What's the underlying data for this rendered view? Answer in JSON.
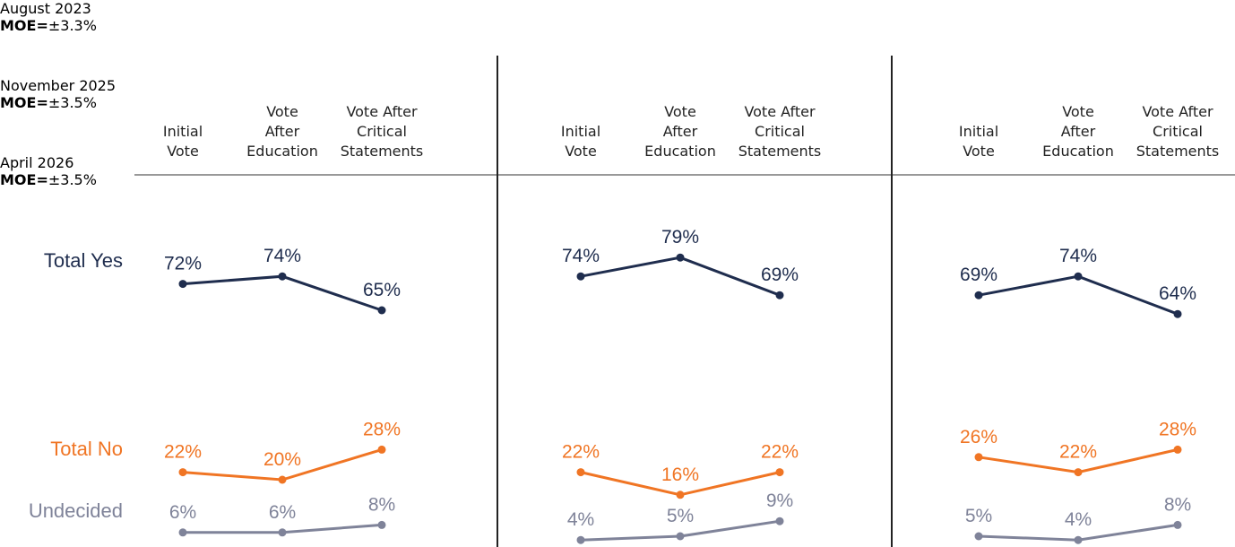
{
  "chart_data": {
    "type": "line",
    "categories": [
      "Initial\nVote",
      "Vote\nAfter\nEducation",
      "Vote After\nCritical\nStatements"
    ],
    "panels": [
      {
        "title": "August 2023",
        "moe_label": "MOE=",
        "moe_value": "±3.3%"
      },
      {
        "title": "November 2025",
        "moe_label": "MOE=",
        "moe_value": "±3.5%"
      },
      {
        "title": "April 2026",
        "moe_label": "MOE=",
        "moe_value": "±3.5%"
      }
    ],
    "series": [
      {
        "name": "Total Yes",
        "color": "#1f2d4e",
        "values": [
          [
            72,
            74,
            65
          ],
          [
            74,
            79,
            69
          ],
          [
            69,
            74,
            64
          ]
        ],
        "value_labels": [
          [
            "72%",
            "74%",
            "65%"
          ],
          [
            "74%",
            "79%",
            "69%"
          ],
          [
            "69%",
            "74%",
            "64%"
          ]
        ]
      },
      {
        "name": "Total No",
        "color": "#f07524",
        "values": [
          [
            22,
            20,
            28
          ],
          [
            22,
            16,
            22
          ],
          [
            26,
            22,
            28
          ]
        ],
        "value_labels": [
          [
            "22%",
            "20%",
            "28%"
          ],
          [
            "22%",
            "16%",
            "22%"
          ],
          [
            "26%",
            "22%",
            "28%"
          ]
        ]
      },
      {
        "name": "Undecided",
        "color": "#7f8399",
        "values": [
          [
            6,
            6,
            8
          ],
          [
            4,
            5,
            9
          ],
          [
            5,
            4,
            8
          ]
        ],
        "value_labels": [
          [
            "6%",
            "6%",
            "8%"
          ],
          [
            "4%",
            "5%",
            "9%"
          ],
          [
            "5%",
            "4%",
            "8%"
          ]
        ]
      }
    ]
  }
}
